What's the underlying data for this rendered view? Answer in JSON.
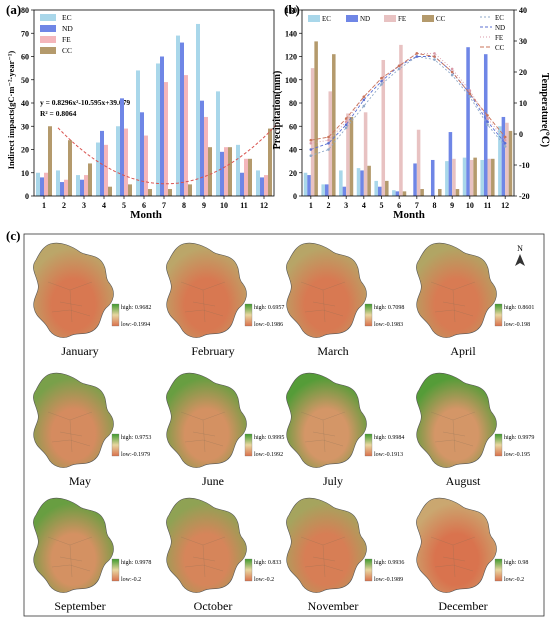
{
  "months": [
    "1",
    "2",
    "3",
    "4",
    "5",
    "6",
    "7",
    "8",
    "9",
    "10",
    "11",
    "12"
  ],
  "colors": {
    "EC": "#a9d7ea",
    "ND": "#6f86e6",
    "FE": "#f4b6bb",
    "CC": "#b49a6c",
    "FE_b": "#e8c2c2",
    "fit": "#d9534f",
    "map_high": "#3f9a2e",
    "map_mid": "#d1a873",
    "map_low": "#d9714c"
  },
  "chart_data": [
    {
      "id": "a",
      "type": "bar",
      "panel_label": "(a)",
      "ylabel": "Indirect impacts(gC·m⁻²·year⁻¹)",
      "xlabel": "Month",
      "ylim": [
        0,
        80
      ],
      "yticks": [
        0,
        10,
        20,
        30,
        40,
        50,
        60,
        70,
        80
      ],
      "categories": [
        "1",
        "2",
        "3",
        "4",
        "5",
        "6",
        "7",
        "8",
        "9",
        "10",
        "11",
        "12"
      ],
      "legend": [
        "EC",
        "ND",
        "FE",
        "CC"
      ],
      "legend_position": "top-left",
      "series": [
        {
          "name": "EC",
          "values": [
            10,
            11,
            9,
            23,
            30,
            54,
            57,
            69,
            74,
            45,
            22,
            11
          ]
        },
        {
          "name": "ND",
          "values": [
            8,
            6,
            7,
            28,
            42,
            36,
            60,
            66,
            41,
            19,
            10,
            8
          ]
        },
        {
          "name": "FE",
          "values": [
            10,
            7,
            9,
            22,
            29,
            26,
            49,
            52,
            34,
            21,
            16,
            9
          ]
        },
        {
          "name": "CC",
          "values": [
            30,
            24,
            14,
            4,
            5,
            3,
            3,
            5,
            21,
            21,
            16,
            29
          ]
        }
      ],
      "fit": {
        "name": "CC",
        "coefficients": [
          0.8296,
          -10.595,
          39.079
        ]
      },
      "annotations": [
        "y = 0.8296x²-10.595x+39.079",
        "R² = 0.8064"
      ]
    },
    {
      "id": "b",
      "type": "bar",
      "panel_label": "(b)",
      "ylabel": "Precipitation(mm)",
      "ylabel_right": "Temperature(℃)",
      "xlabel": "Month",
      "ylim": [
        0,
        160
      ],
      "yticks": [
        0,
        20,
        40,
        60,
        80,
        100,
        120,
        140,
        160
      ],
      "ylim_right": [
        -20,
        40
      ],
      "yticks_right": [
        -20,
        -10,
        0,
        10,
        20,
        30,
        40
      ],
      "categories": [
        "1",
        "2",
        "3",
        "4",
        "5",
        "6",
        "7",
        "8",
        "9",
        "10",
        "11",
        "12"
      ],
      "legend": [
        "EC",
        "ND",
        "FE",
        "CC"
      ],
      "legend_position": "top-left",
      "line_legend": [
        "EC",
        "ND",
        "FE",
        "CC"
      ],
      "line_legend_position": "top-right",
      "series": [
        {
          "name": "EC",
          "values": [
            20,
            10,
            22,
            24,
            13,
            5,
            0,
            0,
            30,
            33,
            31,
            60
          ]
        },
        {
          "name": "ND",
          "values": [
            18,
            10,
            8,
            22,
            8,
            4,
            28,
            31,
            55,
            128,
            122,
            68
          ]
        },
        {
          "name": "FE",
          "values": [
            110,
            90,
            71,
            72,
            117,
            130,
            57,
            0,
            32,
            31,
            32,
            63
          ]
        },
        {
          "name": "CC",
          "values": [
            133,
            122,
            68,
            26,
            13,
            4,
            6,
            6,
            6,
            33,
            32,
            56
          ]
        }
      ],
      "temperature_series": [
        {
          "name": "EC",
          "values": [
            -7,
            -5,
            2,
            9,
            16,
            21,
            25,
            24,
            19,
            12,
            3,
            -4
          ]
        },
        {
          "name": "ND",
          "values": [
            -5,
            -3,
            3,
            11,
            17,
            22,
            25,
            25,
            20,
            13,
            4,
            -3
          ]
        },
        {
          "name": "FE",
          "values": [
            -3,
            -2,
            4,
            12,
            18,
            22,
            26,
            26,
            21,
            14,
            5,
            -2
          ]
        },
        {
          "name": "CC",
          "values": [
            -2,
            -1,
            5,
            12,
            18,
            22,
            26,
            25,
            20,
            13,
            6,
            -1
          ]
        }
      ]
    }
  ],
  "panel_c": {
    "label": "(c)",
    "north": "N",
    "high_prefix": "high",
    "low_prefix": "low",
    "maps": [
      {
        "month": "January",
        "high": "0.9682",
        "low": "-0.1994",
        "green": 0.15
      },
      {
        "month": "February",
        "high": "0.6957",
        "low": "-0.1986",
        "green": 0.15
      },
      {
        "month": "March",
        "high": "0.7098",
        "low": "-0.1983",
        "green": 0.18
      },
      {
        "month": "April",
        "high": "0.8601",
        "low": "-0.198",
        "green": 0.22
      },
      {
        "month": "May",
        "high": "0.9753",
        "low": "-0.1979",
        "green": 0.6
      },
      {
        "month": "June",
        "high": "0.9995",
        "low": "-0.1992",
        "green": 0.72
      },
      {
        "month": "July",
        "high": "0.9984",
        "low": "-0.1913",
        "green": 0.85
      },
      {
        "month": "August",
        "high": "0.9979",
        "low": "-0.195",
        "green": 0.85
      },
      {
        "month": "September",
        "high": "0.9978",
        "low": "-0.2",
        "green": 0.72
      },
      {
        "month": "October",
        "high": "0.833",
        "low": "-0.2",
        "green": 0.45
      },
      {
        "month": "November",
        "high": "0.9936",
        "low": "-0.1989",
        "green": 0.3
      },
      {
        "month": "December",
        "high": "0.98",
        "low": "-0.2",
        "green": 0.05
      }
    ]
  }
}
